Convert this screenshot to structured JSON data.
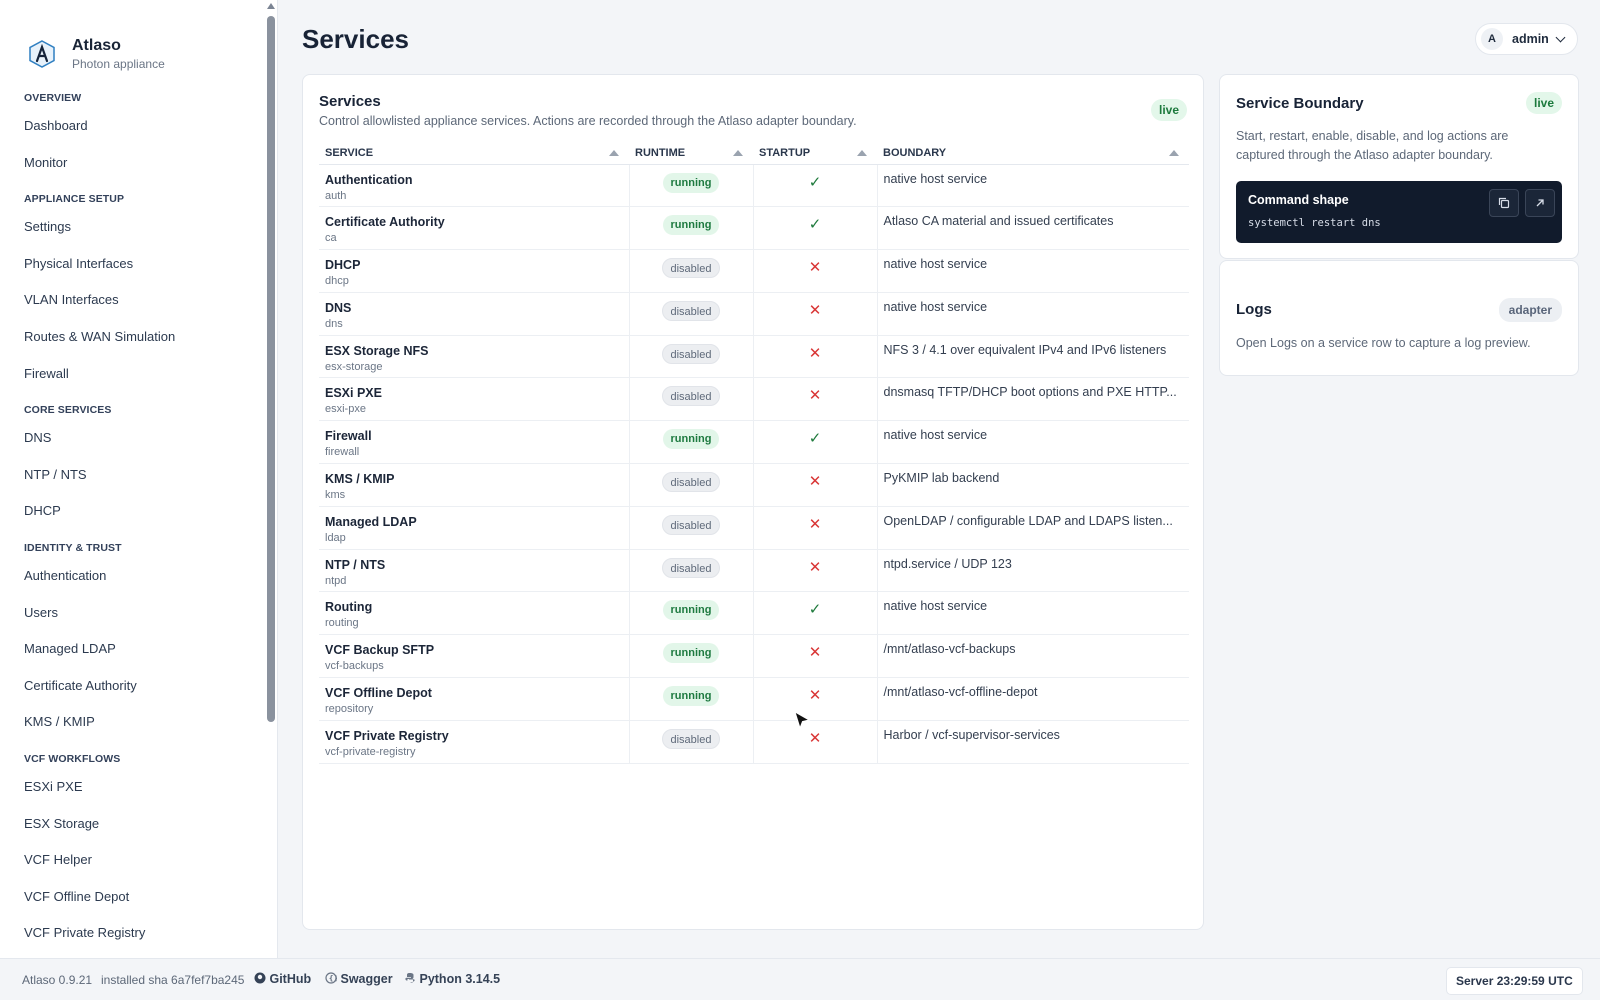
{
  "app": {
    "name": "Atlaso",
    "subtitle": "Photon appliance"
  },
  "sidebar": {
    "sections": [
      {
        "label": "OVERVIEW",
        "items": [
          "Dashboard",
          "Monitor"
        ]
      },
      {
        "label": "APPLIANCE SETUP",
        "items": [
          "Settings",
          "Physical Interfaces",
          "VLAN Interfaces",
          "Routes & WAN Simulation",
          "Firewall"
        ]
      },
      {
        "label": "CORE SERVICES",
        "items": [
          "DNS",
          "NTP / NTS",
          "DHCP"
        ]
      },
      {
        "label": "IDENTITY & TRUST",
        "items": [
          "Authentication",
          "Users",
          "Managed LDAP",
          "Certificate Authority",
          "KMS / KMIP"
        ]
      },
      {
        "label": "VCF WORKFLOWS",
        "items": [
          "ESXi PXE",
          "ESX Storage",
          "VCF Helper",
          "VCF Offline Depot",
          "VCF Private Registry"
        ]
      }
    ]
  },
  "header": {
    "title": "Services",
    "user": "admin",
    "user_initial": "A"
  },
  "services_card": {
    "title": "Services",
    "description": "Control allowlisted appliance services. Actions are recorded through the Atlaso adapter boundary.",
    "badge": "live",
    "columns": [
      "SERVICE",
      "RUNTIME",
      "STARTUP",
      "BOUNDARY"
    ],
    "rows": [
      {
        "name": "Authentication",
        "id": "auth",
        "runtime": "running",
        "startup": true,
        "boundary": "native host service"
      },
      {
        "name": "Certificate Authority",
        "id": "ca",
        "runtime": "running",
        "startup": true,
        "boundary": "Atlaso CA material and issued certificates"
      },
      {
        "name": "DHCP",
        "id": "dhcp",
        "runtime": "disabled",
        "startup": false,
        "boundary": "native host service"
      },
      {
        "name": "DNS",
        "id": "dns",
        "runtime": "disabled",
        "startup": false,
        "boundary": "native host service"
      },
      {
        "name": "ESX Storage NFS",
        "id": "esx-storage",
        "runtime": "disabled",
        "startup": false,
        "boundary": "NFS 3 / 4.1 over equivalent IPv4 and IPv6 listeners"
      },
      {
        "name": "ESXi PXE",
        "id": "esxi-pxe",
        "runtime": "disabled",
        "startup": false,
        "boundary": "dnsmasq TFTP/DHCP boot options and PXE HTTP..."
      },
      {
        "name": "Firewall",
        "id": "firewall",
        "runtime": "running",
        "startup": true,
        "boundary": "native host service"
      },
      {
        "name": "KMS / KMIP",
        "id": "kms",
        "runtime": "disabled",
        "startup": false,
        "boundary": "PyKMIP lab backend"
      },
      {
        "name": "Managed LDAP",
        "id": "ldap",
        "runtime": "disabled",
        "startup": false,
        "boundary": "OpenLDAP / configurable LDAP and LDAPS listen..."
      },
      {
        "name": "NTP / NTS",
        "id": "ntpd",
        "runtime": "disabled",
        "startup": false,
        "boundary": "ntpd.service / UDP 123"
      },
      {
        "name": "Routing",
        "id": "routing",
        "runtime": "running",
        "startup": true,
        "boundary": "native host service"
      },
      {
        "name": "VCF Backup SFTP",
        "id": "vcf-backups",
        "runtime": "running",
        "startup": false,
        "boundary": "/mnt/atlaso-vcf-backups"
      },
      {
        "name": "VCF Offline Depot",
        "id": "repository",
        "runtime": "running",
        "startup": false,
        "boundary": "/mnt/atlaso-vcf-offline-depot"
      },
      {
        "name": "VCF Private Registry",
        "id": "vcf-private-registry",
        "runtime": "disabled",
        "startup": false,
        "boundary": "Harbor / vcf-supervisor-services"
      }
    ]
  },
  "boundary_card": {
    "title": "Service Boundary",
    "badge": "live",
    "description": "Start, restart, enable, disable, and log actions are captured through the Atlaso adapter boundary.",
    "command_title": "Command shape",
    "command": "systemctl restart dns"
  },
  "logs_card": {
    "title": "Logs",
    "badge": "adapter",
    "description": "Open Logs on a service row to capture a log preview."
  },
  "footer": {
    "version": "Atlaso 0.9.21",
    "sha": "installed sha 6a7fef7ba245",
    "github": "GitHub",
    "swagger": "Swagger",
    "python": "Python 3.14.5",
    "server_time": "Server 23:29:59 UTC"
  },
  "colors": {
    "running": "#1e7a40",
    "check": "#1e7a3c",
    "cross": "#d93636",
    "command_bg": "#111b2c"
  }
}
